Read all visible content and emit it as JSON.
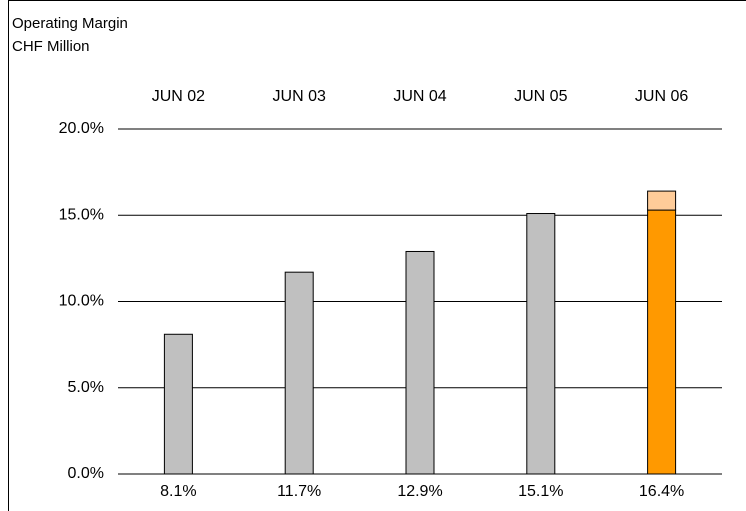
{
  "chart_data": {
    "type": "bar",
    "title": "Operating Margin",
    "subtitle": "CHF Million",
    "categories": [
      "JUN 02",
      "JUN 03",
      "JUN 04",
      "JUN 05",
      "JUN 06"
    ],
    "values": [
      8.1,
      11.7,
      12.9,
      15.1,
      16.4
    ],
    "value_labels": [
      "8.1%",
      "11.7%",
      "12.9%",
      "15.1%",
      "16.4%"
    ],
    "series": [
      {
        "color": "#c0c0c0",
        "values": [
          8.1,
          11.7,
          12.9,
          15.1,
          null
        ]
      },
      {
        "color": "#ff9900",
        "values": [
          null,
          null,
          null,
          null,
          15.3
        ]
      },
      {
        "color": "#ffcc99",
        "values": [
          null,
          null,
          null,
          null,
          1.1
        ]
      }
    ],
    "ylim": [
      0,
      20
    ],
    "yticks": [
      {
        "value": 0,
        "label": "0.0%"
      },
      {
        "value": 5,
        "label": "5.0%"
      },
      {
        "value": 10,
        "label": "10.0%"
      },
      {
        "value": 15,
        "label": "15.0%"
      },
      {
        "value": 20,
        "label": "20.0%"
      }
    ],
    "grid": true
  }
}
